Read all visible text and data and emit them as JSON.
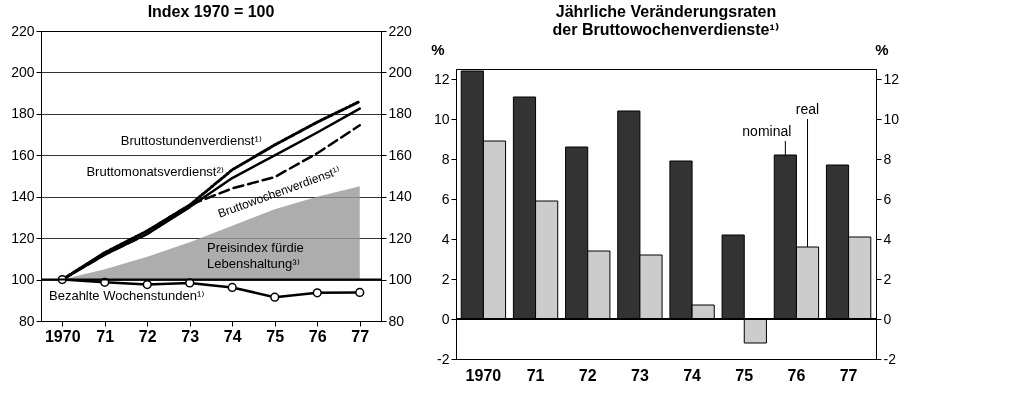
{
  "chart_data": [
    {
      "type": "line",
      "title": "Index 1970 = 100",
      "x": [
        1970,
        1971,
        1972,
        1973,
        1974,
        1975,
        1976,
        1977
      ],
      "xlim": [
        1969.5,
        1977.5
      ],
      "xticks": [
        1970,
        {
          "value": 1971,
          "label": "71"
        },
        {
          "value": 1972,
          "label": "72"
        },
        {
          "value": 1973,
          "label": "73"
        },
        {
          "value": 1974,
          "label": "74"
        },
        {
          "value": 1975,
          "label": "75"
        },
        {
          "value": 1976,
          "label": "76"
        },
        {
          "value": 1977,
          "label": "77"
        }
      ],
      "ylim": [
        80,
        220
      ],
      "yticks": [
        80,
        100,
        120,
        140,
        160,
        180,
        200,
        220
      ],
      "y2lim": [
        80,
        220
      ],
      "y2ticks": [
        80,
        100,
        120,
        140,
        160,
        180,
        200,
        220
      ],
      "grid": "y",
      "ref_lines": [
        {
          "axis": "y",
          "value": 100,
          "color": "#000000"
        }
      ],
      "series": [
        {
          "name": "Preisindex fürdie\nLebenshaltung³⁾",
          "type": "area",
          "color": "#999999",
          "values": [
            100,
            105,
            111,
            118,
            126,
            134,
            140,
            145
          ]
        },
        {
          "name": "Bruttostundenverdienst¹⁾",
          "color": "#000000",
          "line_style": "dotted",
          "values": [
            100,
            113,
            123.5,
            136,
            153,
            165,
            176,
            186
          ]
        },
        {
          "name": "Bruttomonatsverdienst²⁾",
          "color": "#000000",
          "line_style": "solid",
          "values": [
            100,
            112,
            122,
            135,
            149,
            160,
            171,
            182.5
          ]
        },
        {
          "name": "Bruttowochenverdienst¹⁾",
          "color": "#000000",
          "line_style": "dashed",
          "values": [
            100,
            112,
            122,
            136,
            144,
            149.5,
            161,
            174.5
          ]
        },
        {
          "name": "Bezahlte Wochenstunden¹⁾",
          "color": "#000000",
          "line_style": "solid",
          "marker": "circle",
          "values": [
            100,
            98.7,
            97.6,
            98.4,
            96.2,
            91.5,
            93.6,
            93.8
          ]
        }
      ]
    },
    {
      "type": "bar",
      "title": "Jährliche Veränderungsraten\nder Bruttowochenverdienste¹⁾",
      "ylabel": "%",
      "y2label": "%",
      "categories": [
        "1970",
        "71",
        "72",
        "73",
        "74",
        "75",
        "76",
        "77"
      ],
      "ylim": [
        -2,
        12.5
      ],
      "yticks": [
        -2,
        0,
        2,
        4,
        6,
        8,
        10,
        12
      ],
      "y2lim": [
        -2,
        12.5
      ],
      "y2ticks": [
        -2,
        0,
        2,
        4,
        6,
        8,
        10,
        12
      ],
      "ref_lines": [
        {
          "axis": "y",
          "value": 0,
          "color": "#000000"
        }
      ],
      "series": [
        {
          "name": "nominal",
          "color": "#333333",
          "values": [
            12.4,
            11.1,
            8.6,
            10.4,
            7.9,
            4.2,
            8.2,
            7.7
          ]
        },
        {
          "name": "real",
          "color": "#cccccc",
          "values": [
            8.9,
            5.9,
            3.4,
            3.2,
            0.7,
            -1.2,
            3.6,
            4.1
          ]
        }
      ]
    }
  ]
}
